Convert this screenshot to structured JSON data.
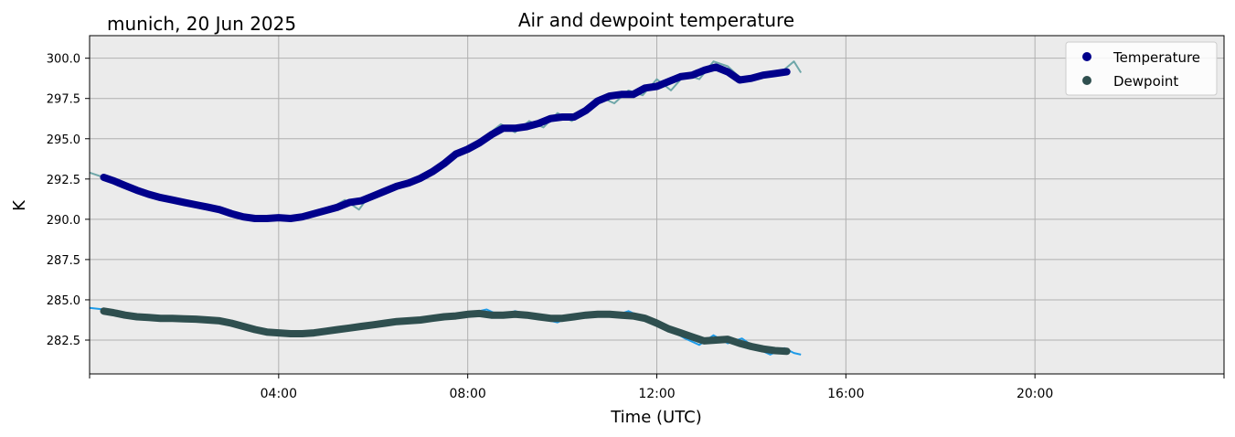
{
  "chart_data": {
    "type": "line",
    "title": "Air and dewpoint temperature",
    "location_label": "munich, 20 Jun 2025",
    "xlabel": "Time (UTC)",
    "ylabel": "K",
    "x_unit": "hours UTC",
    "xlim": [
      0,
      24
    ],
    "ylim": [
      280.4,
      301.4
    ],
    "x_ticks": [
      {
        "value": 0,
        "label": ""
      },
      {
        "value": 4,
        "label": "04:00"
      },
      {
        "value": 8,
        "label": "08:00"
      },
      {
        "value": 12,
        "label": "12:00"
      },
      {
        "value": 16,
        "label": "16:00"
      },
      {
        "value": 20,
        "label": "20:00"
      },
      {
        "value": 24,
        "label": ""
      }
    ],
    "y_ticks": [
      282.5,
      285.0,
      287.5,
      290.0,
      292.5,
      295.0,
      297.5,
      300.0
    ],
    "grid": true,
    "legend_position": "top-right",
    "legend": [
      {
        "name": "Temperature",
        "color": "#00008b"
      },
      {
        "name": "Dewpoint",
        "color": "#2f4f4f"
      }
    ],
    "series": [
      {
        "name": "Temperature",
        "role": "smoothed",
        "color": "#00008b",
        "x": [
          0.3,
          0.5,
          0.75,
          1.0,
          1.25,
          1.5,
          1.75,
          2.0,
          2.25,
          2.5,
          2.75,
          3.0,
          3.25,
          3.5,
          3.75,
          4.0,
          4.25,
          4.5,
          4.75,
          5.0,
          5.25,
          5.5,
          5.75,
          6.0,
          6.25,
          6.5,
          6.75,
          7.0,
          7.25,
          7.5,
          7.75,
          8.0,
          8.25,
          8.5,
          8.75,
          9.0,
          9.25,
          9.5,
          9.75,
          10.0,
          10.25,
          10.5,
          10.75,
          11.0,
          11.25,
          11.5,
          11.75,
          12.0,
          12.25,
          12.5,
          12.75,
          13.0,
          13.25,
          13.5,
          13.75,
          14.0,
          14.25,
          14.5,
          14.75
        ],
        "y": [
          292.6,
          292.4,
          292.1,
          291.8,
          291.55,
          291.35,
          291.2,
          291.05,
          290.9,
          290.75,
          290.6,
          290.35,
          290.15,
          290.05,
          290.05,
          290.1,
          290.05,
          290.15,
          290.35,
          290.55,
          290.75,
          291.05,
          291.15,
          291.45,
          291.75,
          292.05,
          292.25,
          292.55,
          292.95,
          293.45,
          294.05,
          294.35,
          294.75,
          295.25,
          295.65,
          295.65,
          295.75,
          295.95,
          296.25,
          296.35,
          296.35,
          296.75,
          297.35,
          297.65,
          297.75,
          297.75,
          298.15,
          298.25,
          298.55,
          298.85,
          298.95,
          299.25,
          299.45,
          299.15,
          298.65,
          298.75,
          298.95,
          299.05,
          299.15
        ]
      },
      {
        "name": "Temperature (raw)",
        "role": "raw",
        "color": "#6fa7a9",
        "x": [
          0.0,
          0.3,
          0.6,
          0.9,
          1.2,
          1.5,
          1.8,
          2.1,
          2.4,
          2.7,
          3.0,
          3.3,
          3.6,
          3.9,
          4.2,
          4.5,
          4.8,
          5.1,
          5.4,
          5.7,
          5.8,
          6.0,
          6.3,
          6.6,
          6.9,
          7.2,
          7.5,
          7.8,
          8.1,
          8.4,
          8.7,
          9.0,
          9.3,
          9.6,
          9.9,
          10.2,
          10.5,
          10.8,
          11.1,
          11.4,
          11.7,
          12.0,
          12.3,
          12.6,
          12.9,
          13.2,
          13.5,
          13.8,
          14.1,
          14.4,
          14.7,
          14.9,
          15.05
        ],
        "y": [
          292.9,
          292.6,
          292.3,
          291.9,
          291.6,
          291.4,
          291.2,
          291.0,
          290.9,
          290.7,
          290.4,
          290.2,
          290.1,
          290.0,
          290.0,
          290.2,
          290.5,
          290.7,
          291.2,
          290.6,
          291.0,
          291.6,
          291.9,
          292.3,
          292.5,
          292.9,
          293.6,
          294.0,
          294.5,
          295.2,
          295.9,
          295.4,
          296.1,
          295.7,
          296.6,
          296.1,
          296.7,
          297.6,
          297.2,
          298.0,
          297.7,
          298.7,
          298.0,
          299.0,
          298.7,
          299.8,
          299.5,
          298.7,
          298.8,
          299.0,
          299.3,
          299.8,
          299.1
        ]
      },
      {
        "name": "Dewpoint",
        "role": "smoothed",
        "color": "#2f4f4f",
        "x": [
          0.3,
          0.5,
          0.75,
          1.0,
          1.25,
          1.5,
          1.75,
          2.0,
          2.25,
          2.5,
          2.75,
          3.0,
          3.25,
          3.5,
          3.75,
          4.0,
          4.25,
          4.5,
          4.75,
          5.0,
          5.25,
          5.5,
          5.75,
          6.0,
          6.25,
          6.5,
          6.75,
          7.0,
          7.25,
          7.5,
          7.75,
          8.0,
          8.25,
          8.5,
          8.75,
          9.0,
          9.25,
          9.5,
          9.75,
          10.0,
          10.25,
          10.5,
          10.75,
          11.0,
          11.25,
          11.5,
          11.75,
          12.0,
          12.25,
          12.5,
          12.75,
          13.0,
          13.25,
          13.5,
          13.75,
          14.0,
          14.25,
          14.5,
          14.75
        ],
        "y": [
          284.3,
          284.2,
          284.05,
          283.95,
          283.9,
          283.85,
          283.85,
          283.82,
          283.8,
          283.75,
          283.7,
          283.55,
          283.35,
          283.15,
          283.0,
          282.95,
          282.9,
          282.9,
          282.95,
          283.05,
          283.15,
          283.25,
          283.35,
          283.45,
          283.55,
          283.65,
          283.7,
          283.75,
          283.85,
          283.95,
          284.0,
          284.1,
          284.15,
          284.05,
          284.05,
          284.1,
          284.05,
          283.95,
          283.85,
          283.85,
          283.95,
          284.05,
          284.1,
          284.1,
          284.05,
          284.0,
          283.85,
          283.55,
          283.2,
          282.95,
          282.7,
          282.45,
          282.5,
          282.55,
          282.3,
          282.1,
          281.95,
          281.85,
          281.8
        ]
      },
      {
        "name": "Dewpoint (raw)",
        "role": "raw",
        "color": "#1e9be8",
        "x": [
          0.0,
          0.3,
          0.6,
          0.9,
          1.2,
          1.5,
          1.8,
          2.1,
          2.4,
          2.7,
          3.0,
          3.3,
          3.6,
          3.9,
          4.2,
          4.5,
          4.8,
          5.1,
          5.4,
          5.7,
          6.0,
          6.3,
          6.6,
          6.9,
          7.2,
          7.5,
          7.8,
          8.1,
          8.4,
          8.7,
          9.0,
          9.3,
          9.6,
          9.9,
          10.2,
          10.5,
          10.8,
          11.1,
          11.4,
          11.7,
          12.0,
          12.3,
          12.6,
          12.9,
          13.2,
          13.5,
          13.8,
          14.1,
          14.4,
          14.7,
          14.9,
          15.05
        ],
        "y": [
          284.5,
          284.4,
          284.2,
          284.0,
          283.9,
          283.9,
          283.8,
          283.8,
          283.8,
          283.7,
          283.6,
          283.4,
          283.1,
          283.0,
          282.9,
          282.8,
          282.9,
          283.0,
          283.2,
          283.3,
          283.4,
          283.6,
          283.7,
          283.7,
          283.8,
          284.0,
          284.0,
          284.2,
          284.4,
          284.0,
          284.3,
          284.1,
          283.8,
          283.6,
          284.0,
          284.1,
          284.2,
          284.0,
          284.3,
          283.9,
          283.7,
          283.1,
          282.6,
          282.2,
          282.8,
          282.3,
          282.6,
          282.0,
          281.6,
          282.0,
          281.7,
          281.6
        ]
      }
    ]
  }
}
